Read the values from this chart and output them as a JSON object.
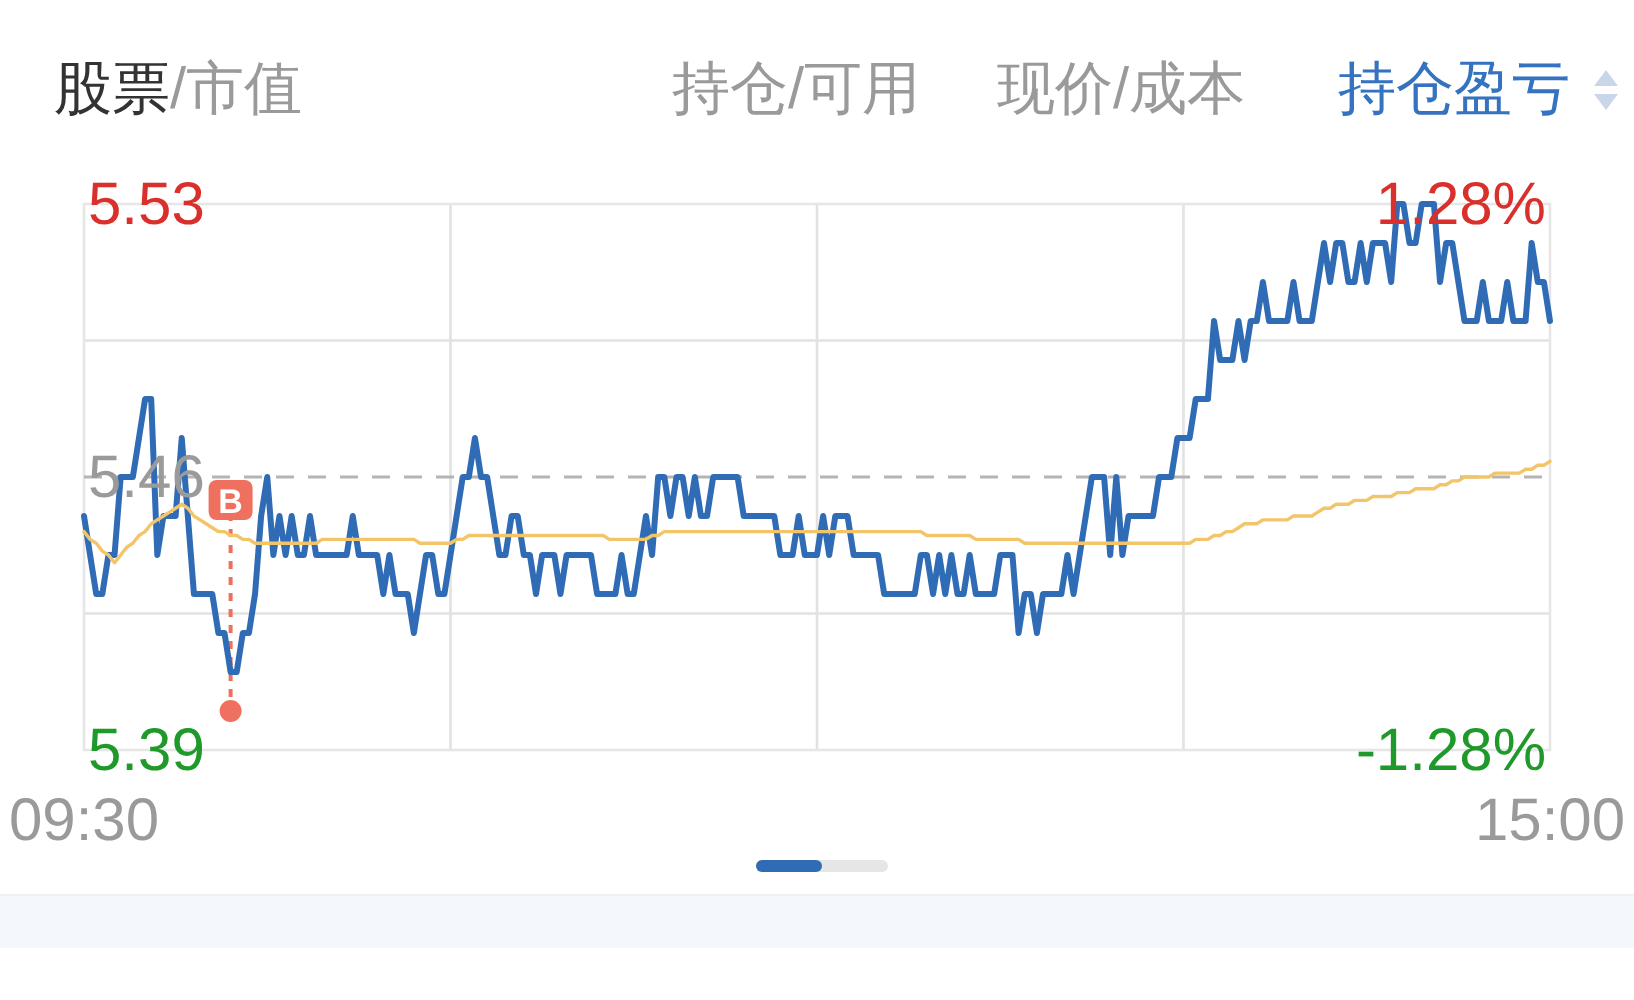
{
  "chart_data": {
    "type": "line",
    "annotations": [
      "股票/市值",
      "持仓/可用",
      "现价/成本",
      "持仓盈亏"
    ],
    "categories": [
      "09:30",
      null,
      null,
      null,
      null,
      null,
      null,
      null,
      null,
      null,
      null,
      null,
      null,
      null,
      null,
      null,
      null,
      null,
      null,
      null,
      null,
      null,
      null,
      null,
      null,
      null,
      null,
      null,
      null,
      null,
      null,
      null,
      null,
      null,
      null,
      null,
      null,
      null,
      null,
      null,
      null,
      null,
      null,
      null,
      null,
      null,
      null,
      null,
      null,
      null,
      null,
      null,
      null,
      null,
      null,
      null,
      null,
      null,
      null,
      null,
      null,
      null,
      null,
      null,
      null,
      null,
      null,
      null,
      null,
      null,
      null,
      null,
      null,
      null,
      null,
      null,
      null,
      null,
      null,
      null,
      null,
      null,
      null,
      null,
      null,
      null,
      null,
      null,
      null,
      null,
      null,
      null,
      null,
      null,
      null,
      null,
      null,
      null,
      null,
      null,
      null,
      null,
      null,
      null,
      null,
      null,
      null,
      null,
      null,
      null,
      null,
      null,
      null,
      null,
      null,
      null,
      null,
      null,
      null,
      null,
      null,
      null,
      null,
      null,
      null,
      null,
      null,
      null,
      null,
      null,
      null,
      null,
      null,
      null,
      null,
      null,
      null,
      null,
      null,
      null,
      null,
      null,
      null,
      null,
      null,
      null,
      null,
      null,
      null,
      null,
      null,
      null,
      null,
      null,
      null,
      null,
      null,
      null,
      null,
      null,
      null,
      null,
      null,
      null,
      null,
      null,
      null,
      null,
      null,
      null,
      null,
      null,
      null,
      null,
      null,
      null,
      null,
      null,
      null,
      null,
      null,
      null,
      null,
      null,
      null,
      null,
      null,
      null,
      null,
      null,
      null,
      null,
      null,
      null,
      null,
      null,
      null,
      null,
      null,
      null,
      null,
      null,
      null,
      null,
      null,
      null,
      null,
      null,
      null,
      null,
      null,
      null,
      null,
      null,
      null,
      null,
      null,
      null,
      null,
      null,
      null,
      null,
      null,
      null,
      null,
      null,
      null,
      null,
      null,
      null,
      null,
      null,
      null,
      null,
      null,
      null,
      null,
      null,
      null,
      null,
      "15:00"
    ],
    "ylim": [
      5.39,
      5.53
    ],
    "yticks": [
      5.39,
      {
        "value": 5.425,
        "label": null
      },
      5.46,
      {
        "value": 5.495,
        "label": null
      },
      5.53
    ],
    "y2lim": [
      -1.28,
      1.28
    ],
    "y2ticks": [
      {
        "value": -1.28,
        "label": "-1.28%"
      },
      {
        "value": 1.28,
        "label": "1.28%"
      }
    ],
    "grid": true,
    "ref_lines": [
      {
        "axis": "y",
        "value": 5.46,
        "color": "#b4b4b4",
        "line_style": "dashed"
      }
    ],
    "series": [
      {
        "color": "#2f6cb5",
        "values": [
          5.45,
          5.44,
          5.43,
          5.43,
          5.44,
          5.44,
          5.46,
          5.46,
          5.46,
          5.47,
          5.48,
          5.48,
          5.44,
          5.45,
          5.45,
          5.45,
          5.47,
          5.45,
          5.43,
          5.43,
          5.43,
          5.43,
          5.42,
          5.42,
          5.41,
          5.41,
          5.42,
          5.42,
          5.43,
          5.45,
          5.46,
          5.44,
          5.45,
          5.44,
          5.45,
          5.44,
          5.44,
          5.45,
          5.44,
          5.44,
          5.44,
          5.44,
          5.44,
          5.44,
          5.45,
          5.44,
          5.44,
          5.44,
          5.44,
          5.43,
          5.44,
          5.43,
          5.43,
          5.43,
          5.42,
          5.43,
          5.44,
          5.44,
          5.43,
          5.43,
          5.44,
          5.45,
          5.46,
          5.46,
          5.47,
          5.46,
          5.46,
          5.45,
          5.44,
          5.44,
          5.45,
          5.45,
          5.44,
          5.44,
          5.43,
          5.44,
          5.44,
          5.44,
          5.43,
          5.44,
          5.44,
          5.44,
          5.44,
          5.44,
          5.43,
          5.43,
          5.43,
          5.43,
          5.44,
          5.43,
          5.43,
          5.44,
          5.45,
          5.44,
          5.46,
          5.46,
          5.45,
          5.46,
          5.46,
          5.45,
          5.46,
          5.45,
          5.45,
          5.46,
          5.46,
          5.46,
          5.46,
          5.46,
          5.45,
          5.45,
          5.45,
          5.45,
          5.45,
          5.45,
          5.44,
          5.44,
          5.44,
          5.45,
          5.44,
          5.44,
          5.44,
          5.45,
          5.44,
          5.45,
          5.45,
          5.45,
          5.44,
          5.44,
          5.44,
          5.44,
          5.44,
          5.43,
          5.43,
          5.43,
          5.43,
          5.43,
          5.43,
          5.44,
          5.44,
          5.43,
          5.44,
          5.43,
          5.44,
          5.43,
          5.43,
          5.44,
          5.43,
          5.43,
          5.43,
          5.43,
          5.44,
          5.44,
          5.44,
          5.42,
          5.43,
          5.43,
          5.42,
          5.43,
          5.43,
          5.43,
          5.43,
          5.44,
          5.43,
          5.44,
          5.45,
          5.46,
          5.46,
          5.46,
          5.44,
          5.46,
          5.44,
          5.45,
          5.45,
          5.45,
          5.45,
          5.45,
          5.46,
          5.46,
          5.46,
          5.47,
          5.47,
          5.47,
          5.48,
          5.48,
          5.48,
          5.5,
          5.49,
          5.49,
          5.49,
          5.5,
          5.49,
          5.5,
          5.5,
          5.51,
          5.5,
          5.5,
          5.5,
          5.5,
          5.51,
          5.5,
          5.5,
          5.5,
          5.51,
          5.52,
          5.51,
          5.52,
          5.52,
          5.51,
          5.51,
          5.52,
          5.51,
          5.52,
          5.52,
          5.52,
          5.51,
          5.53,
          5.53,
          5.52,
          5.52,
          5.53,
          5.53,
          5.53,
          5.51,
          5.52,
          5.52,
          5.51,
          5.5,
          5.5,
          5.5,
          5.51,
          5.5,
          5.5,
          5.5,
          5.51,
          5.5,
          5.5,
          5.5,
          5.52,
          5.51,
          5.51,
          5.5
        ]
      },
      {
        "color": "#f2c56b",
        "values": [
          5.446,
          5.444,
          5.443,
          5.441,
          5.44,
          5.438,
          5.44,
          5.442,
          5.443,
          5.445,
          5.446,
          5.448,
          5.449,
          5.45,
          5.451,
          5.452,
          5.453,
          5.452,
          5.45,
          5.449,
          5.448,
          5.447,
          5.446,
          5.446,
          5.445,
          5.445,
          5.444,
          5.444,
          5.443,
          5.443,
          5.443,
          5.443,
          5.443,
          5.443,
          5.443,
          5.443,
          5.443,
          5.443,
          5.443,
          5.444,
          5.444,
          5.444,
          5.444,
          5.444,
          5.444,
          5.444,
          5.444,
          5.444,
          5.444,
          5.444,
          5.444,
          5.444,
          5.444,
          5.444,
          5.444,
          5.443,
          5.443,
          5.443,
          5.443,
          5.443,
          5.443,
          5.444,
          5.444,
          5.445,
          5.445,
          5.445,
          5.445,
          5.445,
          5.445,
          5.445,
          5.445,
          5.445,
          5.445,
          5.445,
          5.445,
          5.445,
          5.445,
          5.445,
          5.445,
          5.445,
          5.445,
          5.445,
          5.445,
          5.445,
          5.445,
          5.445,
          5.444,
          5.444,
          5.444,
          5.444,
          5.444,
          5.444,
          5.444,
          5.445,
          5.445,
          5.446,
          5.446,
          5.446,
          5.446,
          5.446,
          5.446,
          5.446,
          5.446,
          5.446,
          5.446,
          5.446,
          5.446,
          5.446,
          5.446,
          5.446,
          5.446,
          5.446,
          5.446,
          5.446,
          5.446,
          5.446,
          5.446,
          5.446,
          5.446,
          5.446,
          5.446,
          5.446,
          5.446,
          5.446,
          5.446,
          5.446,
          5.446,
          5.446,
          5.446,
          5.446,
          5.446,
          5.446,
          5.446,
          5.446,
          5.446,
          5.446,
          5.446,
          5.446,
          5.445,
          5.445,
          5.445,
          5.445,
          5.445,
          5.445,
          5.445,
          5.445,
          5.444,
          5.444,
          5.444,
          5.444,
          5.444,
          5.444,
          5.444,
          5.444,
          5.443,
          5.443,
          5.443,
          5.443,
          5.443,
          5.443,
          5.443,
          5.443,
          5.443,
          5.443,
          5.443,
          5.443,
          5.443,
          5.443,
          5.443,
          5.443,
          5.443,
          5.443,
          5.443,
          5.443,
          5.443,
          5.443,
          5.443,
          5.443,
          5.443,
          5.443,
          5.443,
          5.443,
          5.444,
          5.444,
          5.444,
          5.445,
          5.445,
          5.446,
          5.446,
          5.447,
          5.448,
          5.448,
          5.448,
          5.449,
          5.449,
          5.449,
          5.449,
          5.449,
          5.45,
          5.45,
          5.45,
          5.45,
          5.451,
          5.452,
          5.452,
          5.453,
          5.453,
          5.453,
          5.454,
          5.454,
          5.454,
          5.455,
          5.455,
          5.455,
          5.455,
          5.456,
          5.456,
          5.456,
          5.457,
          5.457,
          5.457,
          5.457,
          5.458,
          5.458,
          5.459,
          5.459,
          5.46,
          5.46,
          5.46,
          5.46,
          5.46,
          5.461,
          5.461,
          5.461,
          5.461,
          5.461,
          5.462,
          5.462,
          5.463,
          5.463,
          5.464
        ]
      },
      {
        "type": "scatter",
        "name": "B",
        "color": "#f07060",
        "values": [
          null,
          null,
          null,
          null,
          null,
          null,
          null,
          null,
          null,
          null,
          null,
          null,
          null,
          null,
          null,
          null,
          null,
          null,
          null,
          null,
          null,
          null,
          null,
          null,
          5.4,
          null,
          null,
          null,
          null,
          null,
          null,
          null,
          null,
          null,
          null,
          null,
          null,
          null,
          null,
          null,
          null,
          null,
          null,
          null,
          null,
          null,
          null,
          null,
          null,
          null,
          null,
          null,
          null,
          null,
          null,
          null,
          null,
          null,
          null,
          null,
          null,
          null,
          null,
          null,
          null,
          null,
          null,
          null,
          null,
          null,
          null,
          null,
          null,
          null,
          null,
          null,
          null,
          null,
          null,
          null,
          null,
          null,
          null,
          null,
          null,
          null,
          null,
          null,
          null,
          null,
          null,
          null,
          null,
          null,
          null,
          null,
          null,
          null,
          null,
          null,
          null,
          null,
          null,
          null,
          null,
          null,
          null,
          null,
          null,
          null,
          null,
          null,
          null,
          null,
          null,
          null,
          null,
          null,
          null,
          null,
          null,
          null,
          null,
          null,
          null,
          null,
          null,
          null,
          null,
          null,
          null,
          null,
          null,
          null,
          null,
          null,
          null,
          null,
          null,
          null,
          null,
          null,
          null,
          null,
          null,
          null,
          null,
          null,
          null,
          null,
          null,
          null,
          null,
          null,
          null,
          null,
          null,
          null,
          null,
          null,
          null,
          null,
          null,
          null,
          null,
          null,
          null,
          null,
          null,
          null,
          null,
          null,
          null,
          null,
          null,
          null,
          null,
          null,
          null,
          null,
          null,
          null,
          null,
          null,
          null,
          null,
          null,
          null,
          null,
          null,
          null,
          null,
          null,
          null,
          null,
          null,
          null,
          null,
          null,
          null,
          null,
          null,
          null,
          null,
          null,
          null,
          null,
          null,
          null,
          null,
          null,
          null,
          null,
          null,
          null,
          null,
          null,
          null,
          null,
          null,
          null,
          null,
          null,
          null,
          null,
          null,
          null,
          null,
          null,
          null,
          null,
          null,
          null,
          null,
          null,
          null,
          null,
          null,
          null,
          null,
          null
        ]
      }
    ]
  }
}
